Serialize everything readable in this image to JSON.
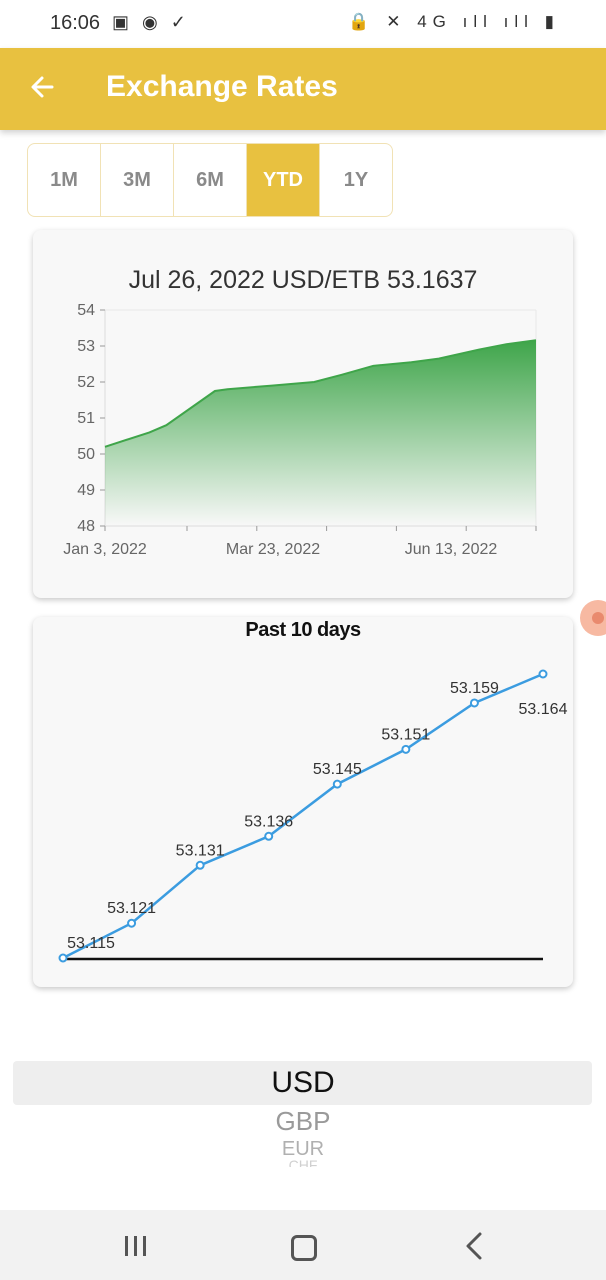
{
  "status_bar": {
    "time": "16:06",
    "left_icons": "▣ ◉ ✓",
    "right_icons": "🔒 ✕ 4G ıll ıll ▮"
  },
  "app_bar": {
    "title": "Exchange Rates",
    "back_icon": "arrow-left-icon"
  },
  "range_tabs": [
    {
      "label": "1M",
      "active": false
    },
    {
      "label": "3M",
      "active": false
    },
    {
      "label": "6M",
      "active": false
    },
    {
      "label": "YTD",
      "active": true
    },
    {
      "label": "1Y",
      "active": false
    }
  ],
  "ytd_chart": {
    "heading": "Jul 26, 2022 USD/ETB 53.1637"
  },
  "ten_day_chart": {
    "heading": "Past 10 days"
  },
  "chart_data": [
    {
      "type": "area",
      "title": "Jul 26, 2022 USD/ETB 53.1637",
      "xlabel": "",
      "ylabel": "",
      "x_tick_labels": [
        "Jan 3, 2022",
        "Mar 23, 2022",
        "Jun 13, 2022"
      ],
      "y_ticks": [
        48,
        49,
        50,
        51,
        52,
        53,
        54
      ],
      "ylim": [
        48,
        54
      ],
      "xlim": [
        "2022-01-03",
        "2022-07-26"
      ],
      "x": [
        "2022-01-03",
        "2022-01-24",
        "2022-02-01",
        "2022-02-24",
        "2022-03-02",
        "2022-03-23",
        "2022-04-12",
        "2022-04-25",
        "2022-05-10",
        "2022-05-28",
        "2022-06-10",
        "2022-06-29",
        "2022-07-12",
        "2022-07-26"
      ],
      "values": [
        50.2,
        50.6,
        50.8,
        51.75,
        51.8,
        51.9,
        52.0,
        52.2,
        52.45,
        52.55,
        52.65,
        52.9,
        53.05,
        53.16
      ],
      "fill_color": "#3fa54a",
      "grid": false
    },
    {
      "type": "line",
      "title": "Past 10 days",
      "xlabel": "",
      "ylabel": "",
      "values": [
        53.115,
        53.121,
        53.131,
        53.136,
        53.145,
        53.151,
        53.159,
        53.164
      ],
      "labels": [
        "53.115",
        "53.121",
        "53.131",
        "53.136",
        "53.145",
        "53.151",
        "53.159",
        "53.164"
      ],
      "ylim": [
        53.115,
        53.164
      ],
      "line_color": "#3b9ce0",
      "grid": false
    }
  ],
  "currency_picker": {
    "options": [
      "USD",
      "GBP",
      "EUR",
      "CHF"
    ],
    "selected": "USD"
  },
  "nav_bar": {
    "recent_icon": "recent-apps-icon",
    "home_icon": "home-icon",
    "back_icon": "back-icon"
  }
}
